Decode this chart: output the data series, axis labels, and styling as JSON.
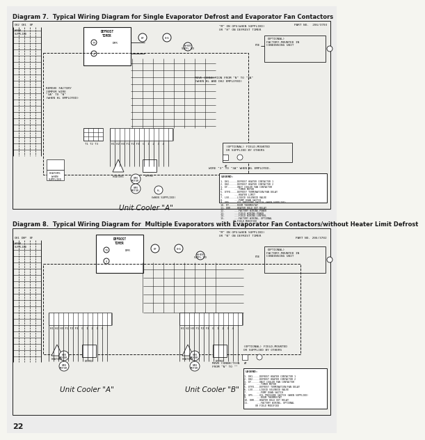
{
  "background_color": "#f5f5f0",
  "page_bg": "#e8e8e3",
  "white": "#ffffff",
  "black": "#1a1a1a",
  "dark_gray": "#555555",
  "mid_gray": "#888888",
  "light_gray": "#cccccc",
  "page_number": "22",
  "title1": "Diagram 7.  Typical Wiring Diagram for Single Evaporator Defrost and Evaporator Fan Contactors",
  "title2": "Diagram 8.  Typical Wiring Diagram for  Multiple Evaporators with Evaporator Fan Contactors/without Heater Limit Defrost",
  "label_unit_cooler_a_top": "Unit Cooler \"A\"",
  "label_unit_cooler_a_bottom": "Unit Cooler \"A\"",
  "label_unit_cooler_b_bottom": "Unit Cooler \"B\"",
  "part_no_1": "PART NO.  206/3703",
  "part_no_2": "PART NO. 206/3702",
  "defrost_timer": "DEFROST\nTIMER",
  "title_fontsize": 6.0,
  "body_fontsize": 3.8,
  "small_fontsize": 3.2,
  "label_fontsize": 7.5,
  "page_num_fontsize": 8.0
}
